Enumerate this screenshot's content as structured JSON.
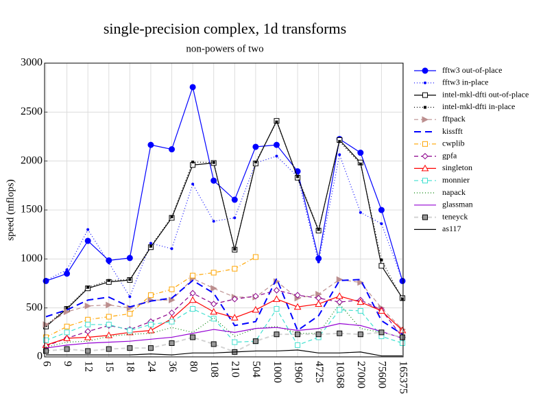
{
  "chart_data": {
    "type": "line",
    "title": "single-precision complex, 1d transforms",
    "subtitle": "non-powers of two",
    "y_label": "speed (mflops)",
    "categories": [
      "6",
      "9",
      "12",
      "15",
      "18",
      "24",
      "36",
      "80",
      "108",
      "210",
      "504",
      "1000",
      "1960",
      "4725",
      "10368",
      "27000",
      "75600",
      "165375"
    ],
    "ylim": [
      0,
      3000
    ],
    "yticks": [
      0,
      500,
      1000,
      1500,
      2000,
      2500,
      3000
    ],
    "grid": true,
    "legend": "right",
    "series": [
      {
        "name": "fftw3 out-of-place",
        "color": "#0000ff",
        "dash": "solid",
        "marker": "circle",
        "values": [
          775,
          850,
          1185,
          985,
          1010,
          2165,
          2120,
          2755,
          1800,
          1605,
          2145,
          2165,
          1895,
          1005,
          2225,
          2085,
          1500,
          775
        ]
      },
      {
        "name": "fftw3 in-place",
        "color": "#0000ff",
        "dash": "dotted",
        "marker": "dot",
        "values": [
          780,
          890,
          1300,
          960,
          615,
          1160,
          1105,
          1765,
          1385,
          1420,
          1980,
          2050,
          1840,
          970,
          2065,
          1475,
          1360,
          780
        ]
      },
      {
        "name": "intel-mkl-dfti out-of-place",
        "color": "#000000",
        "dash": "solid",
        "marker": "square",
        "values": [
          310,
          490,
          700,
          765,
          785,
          1120,
          1420,
          1960,
          1980,
          1095,
          1975,
          2410,
          1830,
          1290,
          2215,
          1985,
          930,
          600
        ]
      },
      {
        "name": "intel-mkl-dfti in-place",
        "color": "#000000",
        "dash": "dotted",
        "marker": "square-filled",
        "values": [
          320,
          500,
          710,
          780,
          790,
          1130,
          1430,
          1990,
          1985,
          1100,
          1990,
          2400,
          1840,
          1300,
          2200,
          1970,
          990,
          590
        ]
      },
      {
        "name": "fftpack",
        "color": "#bc8f8f",
        "dash": "dashed",
        "marker": "triangle-right",
        "values": [
          330,
          460,
          520,
          530,
          500,
          580,
          580,
          800,
          700,
          610,
          610,
          770,
          600,
          640,
          790,
          760,
          500,
          280
        ]
      },
      {
        "name": "kissfft",
        "color": "#0000ff",
        "dash": "longdash",
        "marker": "none",
        "values": [
          410,
          480,
          580,
          610,
          510,
          570,
          600,
          780,
          650,
          320,
          360,
          800,
          270,
          420,
          780,
          790,
          370,
          230
        ]
      },
      {
        "name": "cwplib",
        "color": "#ffa500",
        "dash": "dashdot",
        "marker": "square",
        "values": [
          200,
          310,
          380,
          410,
          440,
          630,
          690,
          830,
          860,
          900,
          1020,
          null,
          null,
          null,
          null,
          null,
          null,
          null
        ]
      },
      {
        "name": "gpfa",
        "color": "#8b008b",
        "dash": "dashed",
        "marker": "diamond",
        "values": [
          110,
          190,
          260,
          320,
          280,
          360,
          450,
          650,
          540,
          590,
          620,
          680,
          630,
          600,
          560,
          580,
          480,
          200
        ]
      },
      {
        "name": "singleton",
        "color": "#ff0000",
        "dash": "solid",
        "marker": "triangle",
        "values": [
          120,
          190,
          200,
          220,
          250,
          270,
          390,
          580,
          460,
          400,
          480,
          590,
          510,
          540,
          620,
          560,
          470,
          270
        ]
      },
      {
        "name": "monnier",
        "color": "#40e0d0",
        "dash": "dashed",
        "marker": "square",
        "values": [
          170,
          250,
          330,
          330,
          270,
          330,
          360,
          490,
          390,
          150,
          160,
          490,
          120,
          200,
          480,
          470,
          210,
          140
        ]
      },
      {
        "name": "napack",
        "color": "#008000",
        "dash": "dotted",
        "marker": "none",
        "values": [
          100,
          150,
          160,
          210,
          230,
          240,
          300,
          250,
          400,
          210,
          290,
          310,
          240,
          240,
          540,
          290,
          250,
          200
        ]
      },
      {
        "name": "glassman",
        "color": "#9400d3",
        "dash": "solid",
        "marker": "none",
        "values": [
          90,
          120,
          140,
          150,
          160,
          180,
          200,
          240,
          280,
          250,
          290,
          300,
          270,
          290,
          340,
          320,
          260,
          190
        ]
      },
      {
        "name": "teneyck",
        "color": "#d3d3d3",
        "dash": "dashed",
        "marker": "square-gray",
        "values": [
          60,
          80,
          60,
          80,
          90,
          90,
          140,
          200,
          130,
          50,
          160,
          230,
          230,
          230,
          240,
          230,
          250,
          200
        ]
      },
      {
        "name": "as117",
        "color": "#000000",
        "dash": "solid",
        "marker": "none",
        "values": [
          20,
          20,
          20,
          20,
          20,
          30,
          20,
          40,
          40,
          50,
          60,
          60,
          70,
          40,
          40,
          50,
          10,
          10
        ]
      }
    ]
  }
}
